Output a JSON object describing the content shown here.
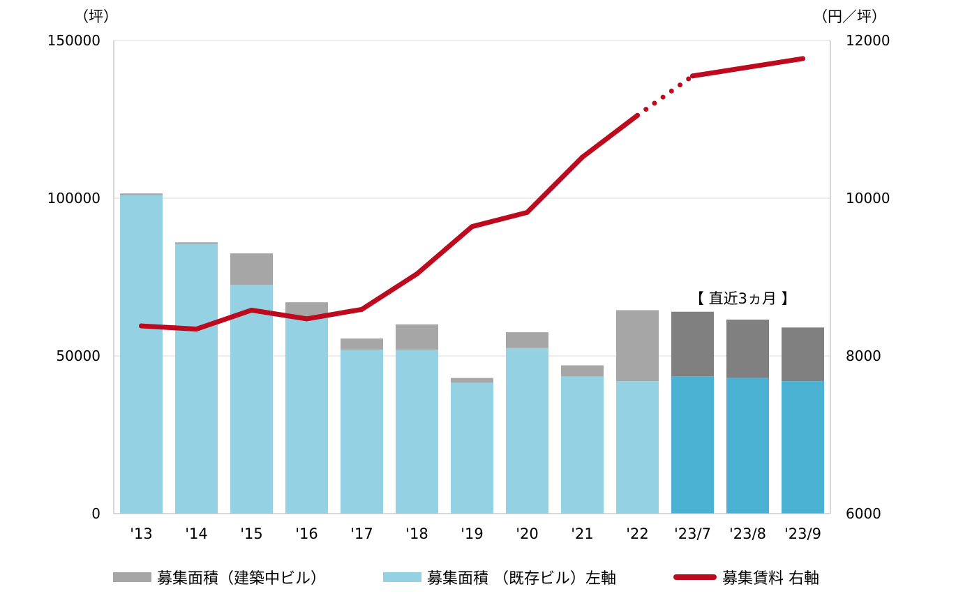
{
  "chart_data": {
    "type": "bar",
    "stacked": true,
    "categories": [
      "'13",
      "'14",
      "'15",
      "'16",
      "'17",
      "'18",
      "'19",
      "'20",
      "'21",
      "'22",
      "'23/7",
      "'23/8",
      "'23/9"
    ],
    "highlight_last_n": 3,
    "annotation": "【 直近3ヵ月 】",
    "y_left": {
      "unit_label": "（坪）",
      "ylim": [
        0,
        150000
      ],
      "ticks": [
        "0",
        "50000",
        "100000",
        "150000"
      ]
    },
    "y_right": {
      "unit_label": "（円／坪）",
      "ylim": [
        6000,
        12000
      ],
      "ticks": [
        "6000",
        "8000",
        "10000",
        "12000"
      ]
    },
    "grid": true,
    "legend_position": "bottom",
    "series": [
      {
        "name": "募集面積 （既存ビル）左軸",
        "type": "bar",
        "axis": "left",
        "values": [
          101000,
          85500,
          72500,
          62500,
          52000,
          52000,
          41500,
          52500,
          43500,
          42000,
          43500,
          43000,
          42000
        ],
        "color": "#94D1E2",
        "highlight_color": "#4BB1D3"
      },
      {
        "name": "募集面積（建築中ビル）",
        "type": "bar",
        "axis": "left",
        "values": [
          500,
          500,
          10000,
          4500,
          3500,
          8000,
          1500,
          5000,
          3500,
          22500,
          20500,
          18500,
          17000
        ],
        "color": "#A6A6A6",
        "highlight_color": "#808080"
      },
      {
        "name": "募集賃料 右軸",
        "type": "line",
        "axis": "right",
        "values": [
          8380,
          8340,
          8580,
          8470,
          8590,
          9040,
          9640,
          9820,
          10520,
          11050,
          11550,
          11660,
          11770
        ],
        "dotted_segment_between": [
          "'22",
          "'23/7"
        ],
        "color": "#BE0A1E"
      }
    ]
  }
}
